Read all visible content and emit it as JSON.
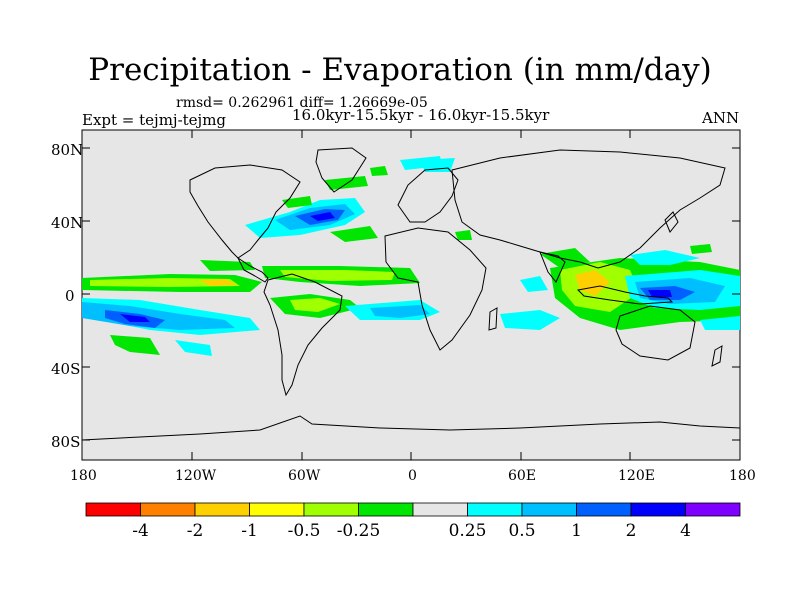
{
  "title": "Precipitation - Evaporation (in mm/day)",
  "stats": "rmsd= 0.262961 diff= 1.26669e-05",
  "experiment": "Expt = tejmj-tejmg",
  "period": "16.0kyr-15.5kyr - 16.0kyr-15.5kyr",
  "season": "ANN",
  "map": {
    "lat_ticks": [
      "80N",
      "40N",
      "0",
      "40S",
      "80S"
    ],
    "lon_ticks": [
      "180",
      "120W",
      "60W",
      "0",
      "60E",
      "120E",
      "180"
    ],
    "background_color": "#e6e6e6"
  },
  "colorbar": {
    "colors": [
      "#ff0000",
      "#ff8000",
      "#ffd000",
      "#ffff00",
      "#a0ff00",
      "#00e600",
      "#e6e6e6",
      "#00ffff",
      "#00bfff",
      "#0060ff",
      "#0000ff",
      "#8000ff"
    ],
    "labels": [
      "-4",
      "-2",
      "-1",
      "-0.5",
      "-0.25",
      "0.25",
      "0.5",
      "1",
      "2",
      "4"
    ]
  }
}
